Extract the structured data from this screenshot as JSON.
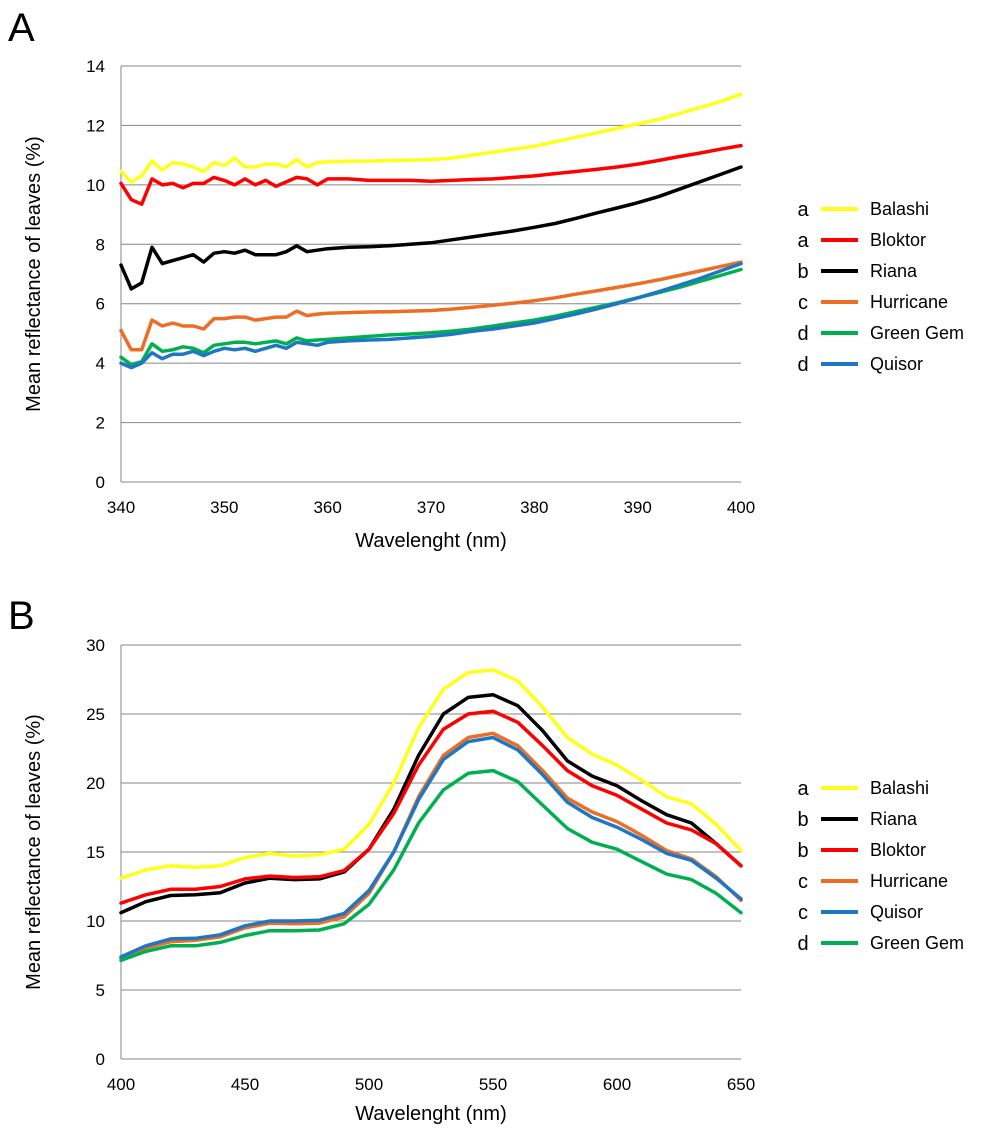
{
  "chart_data": [
    {
      "panel": "A",
      "type": "line",
      "xlabel": "Wavelenght (nm)",
      "ylabel": "Mean reflectance of leaves (%)",
      "xlim": [
        340,
        400
      ],
      "ylim": [
        0,
        14
      ],
      "xticks": [
        340,
        350,
        360,
        370,
        380,
        390,
        400
      ],
      "yticks": [
        0,
        2,
        4,
        6,
        8,
        10,
        12,
        14
      ],
      "grid": "horizontal",
      "legend_position": "right",
      "series": [
        {
          "name": "Balashi",
          "group": "a",
          "color": "#FFFF1A",
          "x": [
            340,
            341,
            342,
            343,
            344,
            345,
            346,
            347,
            348,
            349,
            350,
            351,
            352,
            353,
            354,
            355,
            356,
            357,
            358,
            359,
            360,
            362,
            364,
            366,
            368,
            370,
            372,
            374,
            376,
            378,
            380,
            382,
            384,
            386,
            388,
            390,
            392,
            394,
            396,
            398,
            400
          ],
          "y": [
            10.45,
            10.1,
            10.3,
            10.8,
            10.5,
            10.75,
            10.7,
            10.6,
            10.45,
            10.75,
            10.65,
            10.9,
            10.6,
            10.6,
            10.7,
            10.7,
            10.6,
            10.85,
            10.6,
            10.75,
            10.78,
            10.8,
            10.8,
            10.82,
            10.83,
            10.85,
            10.9,
            11.0,
            11.1,
            11.2,
            11.3,
            11.45,
            11.6,
            11.75,
            11.9,
            12.05,
            12.2,
            12.4,
            12.6,
            12.8,
            13.05
          ]
        },
        {
          "name": "Bloktor",
          "group": "a",
          "color": "#FF0000",
          "x": [
            340,
            341,
            342,
            343,
            344,
            345,
            346,
            347,
            348,
            349,
            350,
            351,
            352,
            353,
            354,
            355,
            356,
            357,
            358,
            359,
            360,
            362,
            364,
            366,
            368,
            370,
            372,
            374,
            376,
            378,
            380,
            382,
            384,
            386,
            388,
            390,
            392,
            394,
            396,
            398,
            400
          ],
          "y": [
            10.05,
            9.5,
            9.35,
            10.2,
            10.0,
            10.05,
            9.9,
            10.05,
            10.05,
            10.25,
            10.15,
            10.0,
            10.2,
            10.0,
            10.15,
            9.95,
            10.1,
            10.25,
            10.2,
            10.0,
            10.2,
            10.2,
            10.15,
            10.15,
            10.15,
            10.12,
            10.15,
            10.18,
            10.2,
            10.25,
            10.3,
            10.38,
            10.45,
            10.52,
            10.6,
            10.7,
            10.82,
            10.95,
            11.07,
            11.2,
            11.32
          ]
        },
        {
          "name": "Riana",
          "group": "b",
          "color": "#000000",
          "x": [
            340,
            341,
            342,
            343,
            344,
            345,
            346,
            347,
            348,
            349,
            350,
            351,
            352,
            353,
            354,
            355,
            356,
            357,
            358,
            359,
            360,
            362,
            364,
            366,
            368,
            370,
            372,
            374,
            376,
            378,
            380,
            382,
            384,
            386,
            388,
            390,
            392,
            394,
            396,
            398,
            400
          ],
          "y": [
            7.3,
            6.5,
            6.7,
            7.9,
            7.35,
            7.45,
            7.55,
            7.65,
            7.4,
            7.7,
            7.75,
            7.7,
            7.8,
            7.65,
            7.65,
            7.65,
            7.75,
            7.95,
            7.75,
            7.8,
            7.85,
            7.9,
            7.92,
            7.95,
            8.0,
            8.05,
            8.15,
            8.25,
            8.35,
            8.45,
            8.57,
            8.7,
            8.87,
            9.05,
            9.22,
            9.4,
            9.6,
            9.85,
            10.1,
            10.35,
            10.6
          ]
        },
        {
          "name": "Hurricane",
          "group": "c",
          "color": "#ED6D25",
          "x": [
            340,
            341,
            342,
            343,
            344,
            345,
            346,
            347,
            348,
            349,
            350,
            351,
            352,
            353,
            354,
            355,
            356,
            357,
            358,
            359,
            360,
            362,
            364,
            366,
            368,
            370,
            372,
            374,
            376,
            378,
            380,
            382,
            384,
            386,
            388,
            390,
            392,
            394,
            396,
            398,
            400
          ],
          "y": [
            5.1,
            4.45,
            4.45,
            5.45,
            5.25,
            5.35,
            5.25,
            5.25,
            5.15,
            5.5,
            5.5,
            5.55,
            5.55,
            5.45,
            5.5,
            5.55,
            5.55,
            5.75,
            5.6,
            5.65,
            5.68,
            5.7,
            5.72,
            5.73,
            5.75,
            5.77,
            5.82,
            5.88,
            5.95,
            6.02,
            6.1,
            6.2,
            6.32,
            6.43,
            6.55,
            6.67,
            6.8,
            6.95,
            7.1,
            7.25,
            7.4
          ]
        },
        {
          "name": "Green Gem",
          "group": "d",
          "color": "#00B050",
          "x": [
            340,
            341,
            342,
            343,
            344,
            345,
            346,
            347,
            348,
            349,
            350,
            351,
            352,
            353,
            354,
            355,
            356,
            357,
            358,
            359,
            360,
            362,
            364,
            366,
            368,
            370,
            372,
            374,
            376,
            378,
            380,
            382,
            384,
            386,
            388,
            390,
            392,
            394,
            396,
            398,
            400
          ],
          "y": [
            4.2,
            3.95,
            4.05,
            4.65,
            4.4,
            4.45,
            4.55,
            4.5,
            4.35,
            4.6,
            4.65,
            4.7,
            4.7,
            4.65,
            4.7,
            4.75,
            4.65,
            4.85,
            4.75,
            4.78,
            4.8,
            4.85,
            4.9,
            4.95,
            4.98,
            5.02,
            5.08,
            5.15,
            5.25,
            5.35,
            5.45,
            5.58,
            5.73,
            5.88,
            6.03,
            6.2,
            6.37,
            6.55,
            6.75,
            6.95,
            7.15
          ]
        },
        {
          "name": "Quisor",
          "group": "d",
          "color": "#1F77C4",
          "x": [
            340,
            341,
            342,
            343,
            344,
            345,
            346,
            347,
            348,
            349,
            350,
            351,
            352,
            353,
            354,
            355,
            356,
            357,
            358,
            359,
            360,
            362,
            364,
            366,
            368,
            370,
            372,
            374,
            376,
            378,
            380,
            382,
            384,
            386,
            388,
            390,
            392,
            394,
            396,
            398,
            400
          ],
          "y": [
            4.0,
            3.85,
            4.0,
            4.35,
            4.15,
            4.3,
            4.3,
            4.4,
            4.25,
            4.4,
            4.5,
            4.45,
            4.5,
            4.4,
            4.5,
            4.6,
            4.5,
            4.7,
            4.65,
            4.6,
            4.7,
            4.75,
            4.78,
            4.8,
            4.85,
            4.9,
            4.97,
            5.07,
            5.15,
            5.25,
            5.35,
            5.5,
            5.65,
            5.82,
            6.0,
            6.2,
            6.4,
            6.62,
            6.85,
            7.1,
            7.35
          ]
        }
      ]
    },
    {
      "panel": "B",
      "type": "line",
      "xlabel": "Wavelenght (nm)",
      "ylabel": "Mean reflectance of leaves (%)",
      "xlim": [
        400,
        650
      ],
      "ylim": [
        0,
        30
      ],
      "xticks": [
        400,
        450,
        500,
        550,
        600,
        650
      ],
      "yticks": [
        0,
        5,
        10,
        15,
        20,
        25,
        30
      ],
      "grid": "horizontal",
      "legend_position": "right",
      "series": [
        {
          "name": "Balashi",
          "group": "a",
          "color": "#FFFF1A",
          "x": [
            400,
            410,
            420,
            430,
            440,
            450,
            460,
            470,
            480,
            490,
            500,
            510,
            520,
            530,
            540,
            550,
            560,
            570,
            580,
            590,
            600,
            610,
            620,
            630,
            640,
            650
          ],
          "y": [
            13.1,
            13.7,
            14.0,
            13.9,
            14.0,
            14.6,
            14.9,
            14.7,
            14.8,
            15.2,
            17.0,
            20.0,
            24.0,
            26.8,
            28.0,
            28.2,
            27.4,
            25.5,
            23.3,
            22.1,
            21.3,
            20.2,
            19.0,
            18.5,
            17.0,
            15.1
          ]
        },
        {
          "name": "Riana",
          "group": "b",
          "color": "#000000",
          "x": [
            400,
            410,
            420,
            430,
            440,
            450,
            460,
            470,
            480,
            490,
            500,
            510,
            520,
            530,
            540,
            550,
            560,
            570,
            580,
            590,
            600,
            610,
            620,
            630,
            640,
            650
          ],
          "y": [
            10.6,
            11.4,
            11.85,
            11.9,
            12.05,
            12.75,
            13.1,
            13.0,
            13.05,
            13.55,
            15.2,
            18.1,
            22.0,
            25.0,
            26.2,
            26.4,
            25.6,
            23.8,
            21.6,
            20.5,
            19.8,
            18.7,
            17.7,
            17.1,
            15.6,
            14.0
          ]
        },
        {
          "name": "Bloktor",
          "group": "b",
          "color": "#FF0000",
          "x": [
            400,
            410,
            420,
            430,
            440,
            450,
            460,
            470,
            480,
            490,
            500,
            510,
            520,
            530,
            540,
            550,
            560,
            570,
            580,
            590,
            600,
            610,
            620,
            630,
            640,
            650
          ],
          "y": [
            11.3,
            11.9,
            12.3,
            12.3,
            12.5,
            13.05,
            13.25,
            13.15,
            13.2,
            13.65,
            15.2,
            17.8,
            21.3,
            23.9,
            25.0,
            25.2,
            24.4,
            22.7,
            20.9,
            19.8,
            19.1,
            18.1,
            17.1,
            16.6,
            15.6,
            14.0
          ]
        },
        {
          "name": "Hurricane",
          "group": "c",
          "color": "#ED6D25",
          "x": [
            400,
            410,
            420,
            430,
            440,
            450,
            460,
            470,
            480,
            490,
            500,
            510,
            520,
            530,
            540,
            550,
            560,
            570,
            580,
            590,
            600,
            610,
            620,
            630,
            640,
            650
          ],
          "y": [
            7.3,
            8.05,
            8.5,
            8.6,
            8.85,
            9.5,
            9.85,
            9.8,
            9.85,
            10.3,
            12.0,
            15.0,
            19.0,
            22.0,
            23.3,
            23.6,
            22.7,
            20.9,
            18.9,
            17.9,
            17.2,
            16.2,
            15.1,
            14.5,
            13.2,
            11.5
          ]
        },
        {
          "name": "Quisor",
          "group": "c",
          "color": "#1F77C4",
          "x": [
            400,
            410,
            420,
            430,
            440,
            450,
            460,
            470,
            480,
            490,
            500,
            510,
            520,
            530,
            540,
            550,
            560,
            570,
            580,
            590,
            600,
            610,
            620,
            630,
            640,
            650
          ],
          "y": [
            7.4,
            8.2,
            8.7,
            8.75,
            9.0,
            9.65,
            10.0,
            10.0,
            10.05,
            10.55,
            12.2,
            15.0,
            18.8,
            21.7,
            23.0,
            23.3,
            22.4,
            20.6,
            18.6,
            17.5,
            16.8,
            15.9,
            14.9,
            14.4,
            13.1,
            11.6
          ]
        },
        {
          "name": "Green Gem",
          "group": "d",
          "color": "#00B050",
          "x": [
            400,
            410,
            420,
            430,
            440,
            450,
            460,
            470,
            480,
            490,
            500,
            510,
            520,
            530,
            540,
            550,
            560,
            570,
            580,
            590,
            600,
            610,
            620,
            630,
            640,
            650
          ],
          "y": [
            7.15,
            7.8,
            8.2,
            8.2,
            8.45,
            8.95,
            9.3,
            9.3,
            9.35,
            9.8,
            11.2,
            13.7,
            17.1,
            19.5,
            20.7,
            20.9,
            20.1,
            18.4,
            16.7,
            15.7,
            15.2,
            14.3,
            13.4,
            13.0,
            12.0,
            10.6
          ]
        }
      ]
    }
  ]
}
